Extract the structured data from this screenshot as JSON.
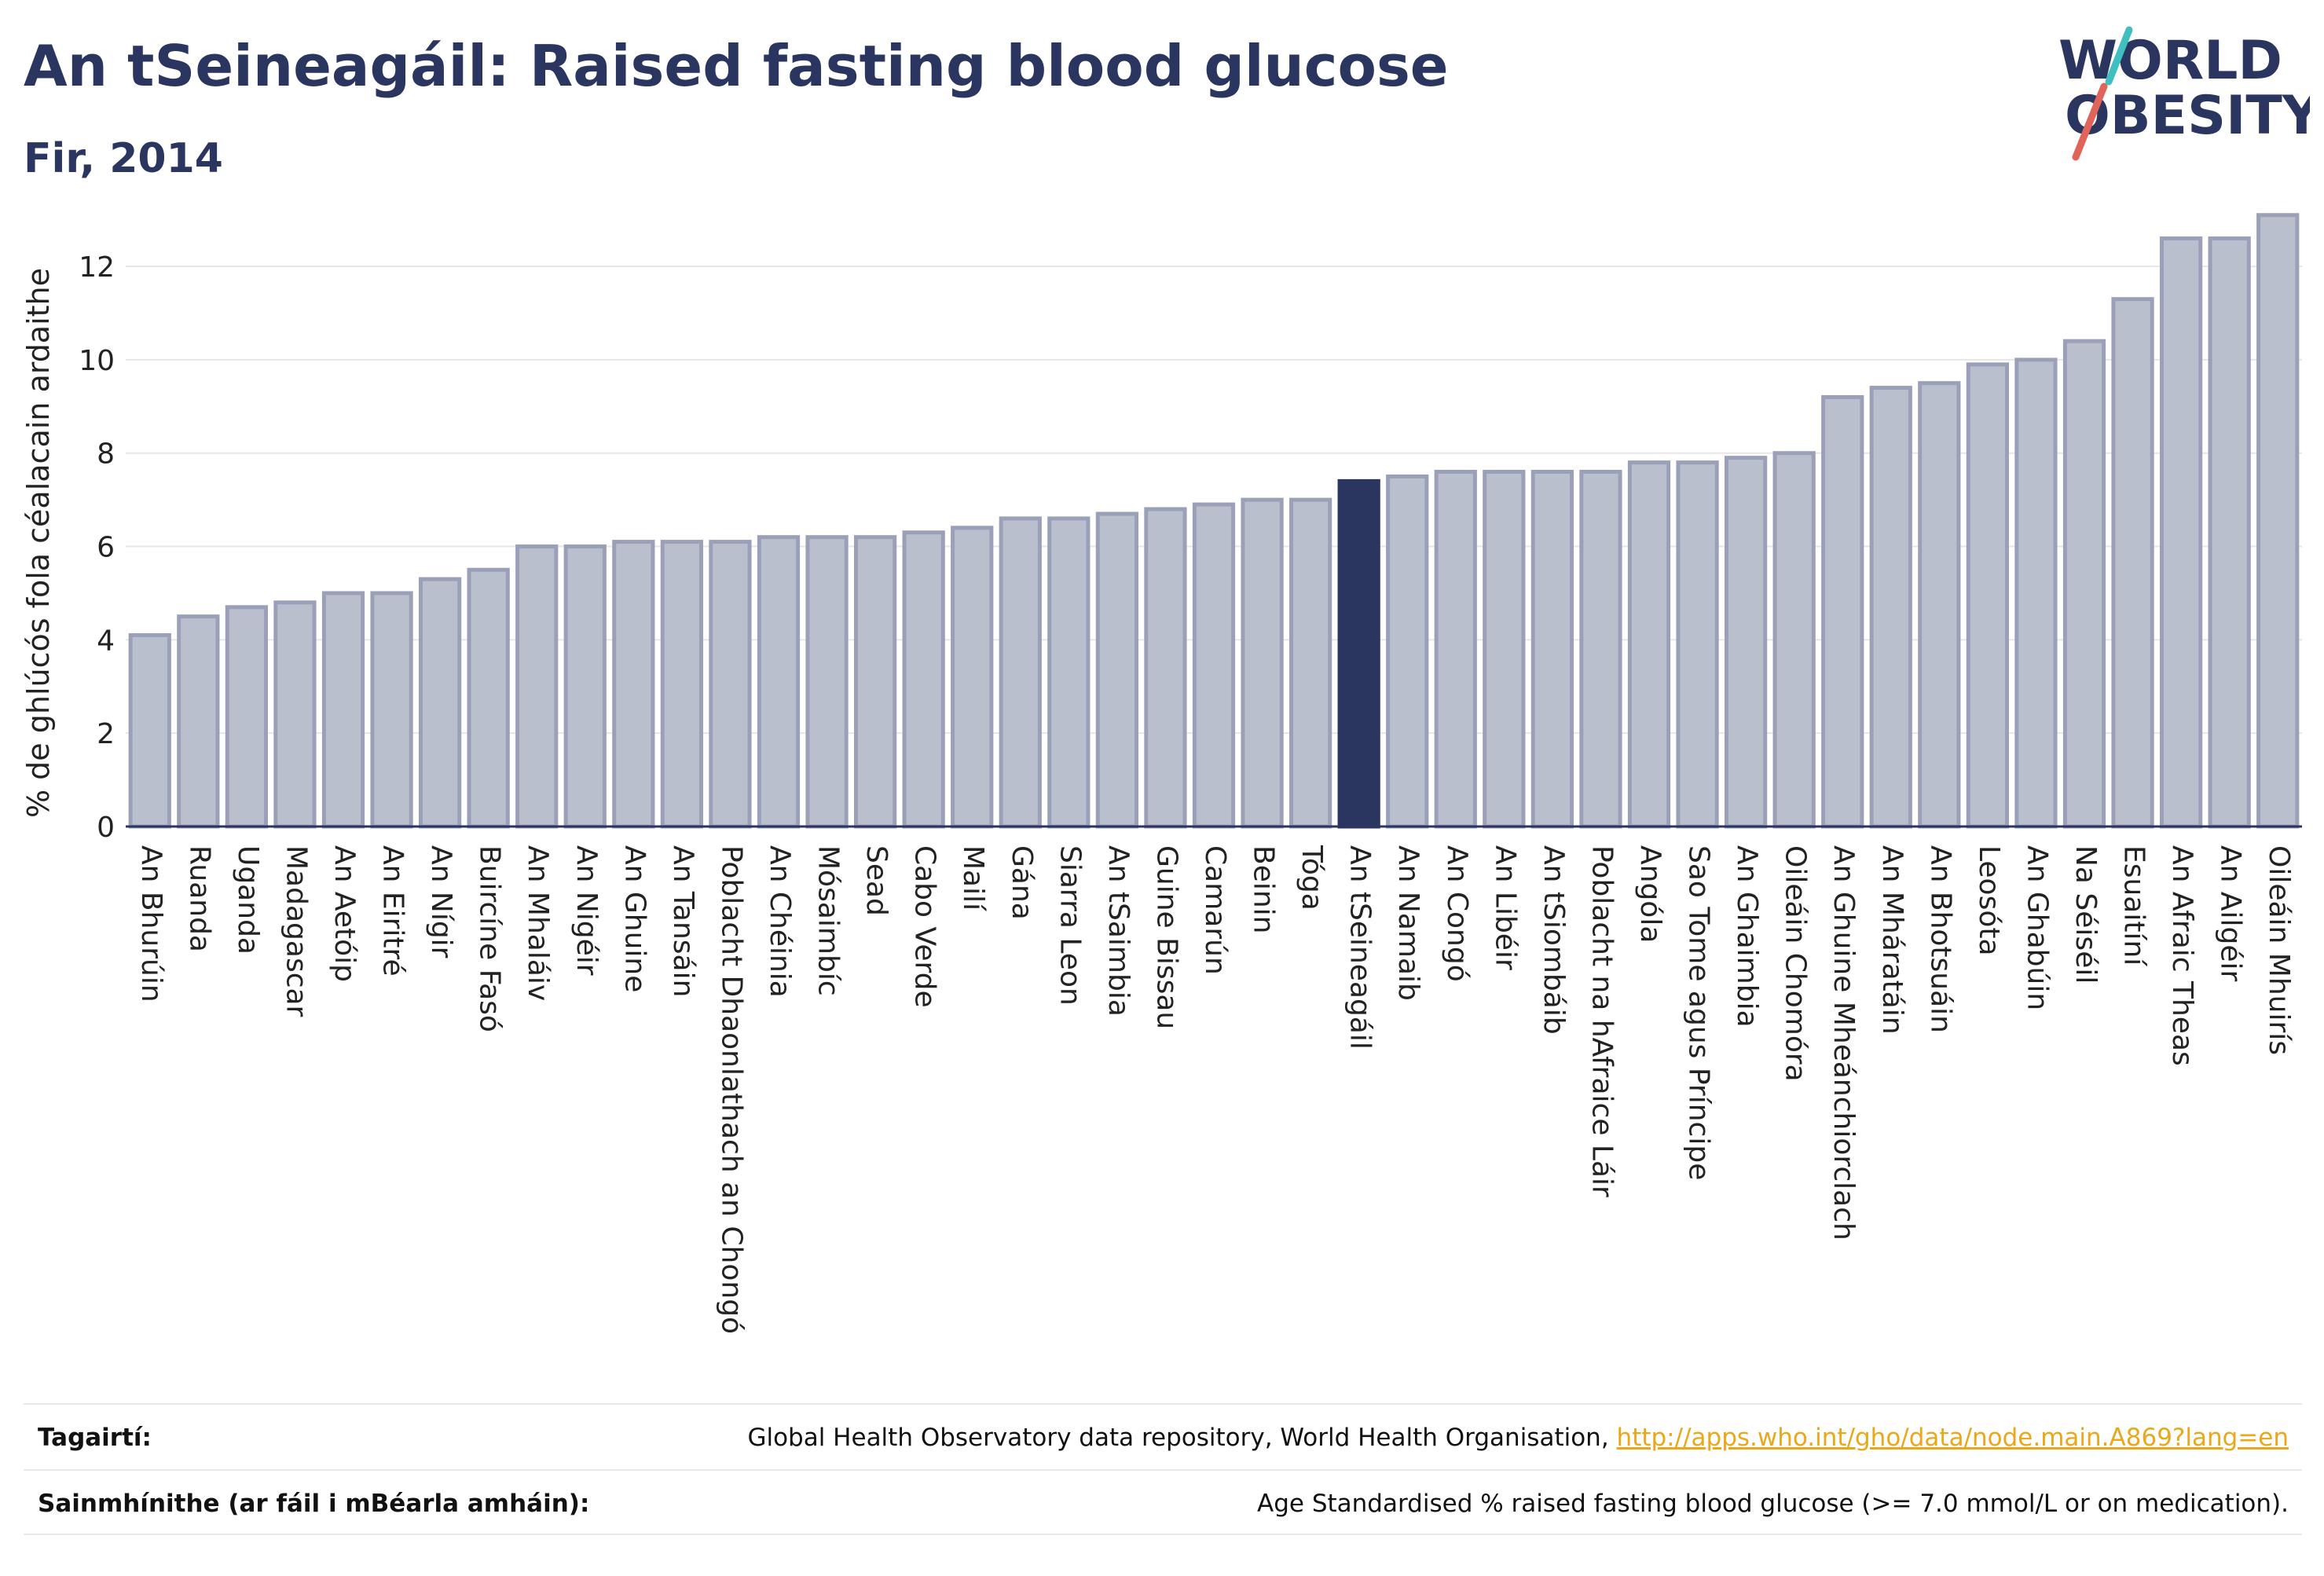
{
  "title": "An tSeineagáil: Raised fasting blood glucose",
  "subtitle": "Fir, 2014",
  "logo": {
    "line1": "WORLD",
    "line2": "OBESITY",
    "accent_teal": "#3fbfbf",
    "accent_red": "#e0645a"
  },
  "colors": {
    "bar": "#babfce",
    "bar_edge": "#9aa0b8",
    "highlight": "#2a3560",
    "grid": "#e6e6e6",
    "axis": "#2a3560"
  },
  "chart_data": {
    "type": "bar",
    "title": "An tSeineagáil: Raised fasting blood glucose",
    "subtitle": "Fir, 2014",
    "ylabel": "% de ghlúcós fola céalacain ardaithe",
    "xlabel": "",
    "ylim": [
      0,
      13.5
    ],
    "yticks": [
      0,
      2,
      4,
      6,
      8,
      10,
      12
    ],
    "grid": true,
    "highlight": "An tSeineagáil",
    "categories": [
      "An Bhurúin",
      "Ruanda",
      "Uganda",
      "Madagascar",
      "An Aetóip",
      "An Eiritré",
      "An Nígir",
      "Buircíne Fasó",
      "An Mhaláiv",
      "An Nigéir",
      "An Ghuine",
      "An Tansáin",
      "Poblacht Dhaonlathach an Chongó",
      "An Chéinia",
      "Mósaimbíc",
      "Sead",
      "Cabo Verde",
      "Mailí",
      "Gána",
      "Siarra Leon",
      "An tSaimbia",
      "Guine Bissau",
      "Camarún",
      "Beinin",
      "Tóga",
      "An tSeineagáil",
      "An Namaib",
      "An Congó",
      "An Libéir",
      "An tSiombáib",
      "Poblacht na hAfraice Láir",
      "Angóla",
      "Sao Tome agus Príncipe",
      "An Ghaimbia",
      "Oileáin Chomóra",
      "An Ghuine Mheánchiorclach",
      "An Mháratáin",
      "An Bhotsuáin",
      "Leosóta",
      "An Ghabúin",
      "Na Séiséil",
      "Esuaitíní",
      "An Afraic Theas",
      "An Ailgéir",
      "Oileáin Mhuirís"
    ],
    "values": [
      4.1,
      4.5,
      4.7,
      4.8,
      5.0,
      5.0,
      5.3,
      5.5,
      6.0,
      6.0,
      6.1,
      6.1,
      6.1,
      6.2,
      6.2,
      6.2,
      6.3,
      6.4,
      6.6,
      6.6,
      6.7,
      6.8,
      6.9,
      7.0,
      7.0,
      7.4,
      7.5,
      7.6,
      7.6,
      7.6,
      7.6,
      7.8,
      7.8,
      7.9,
      8.0,
      9.2,
      9.4,
      9.5,
      9.9,
      10.0,
      10.4,
      11.3,
      12.6,
      12.6,
      13.1
    ]
  },
  "footer": {
    "references_label": "Tagairtí:",
    "references_text": "Global Health Observatory data repository, World Health Organisation,",
    "references_link": "http://apps.who.int/gho/data/node.main.A869?lang=en",
    "definitions_label": "Sainmhínithe (ar fáil i mBéarla amháin):",
    "definitions_text": "Age Standardised % raised fasting blood glucose (>= 7.0 mmol/L or on medication)."
  }
}
